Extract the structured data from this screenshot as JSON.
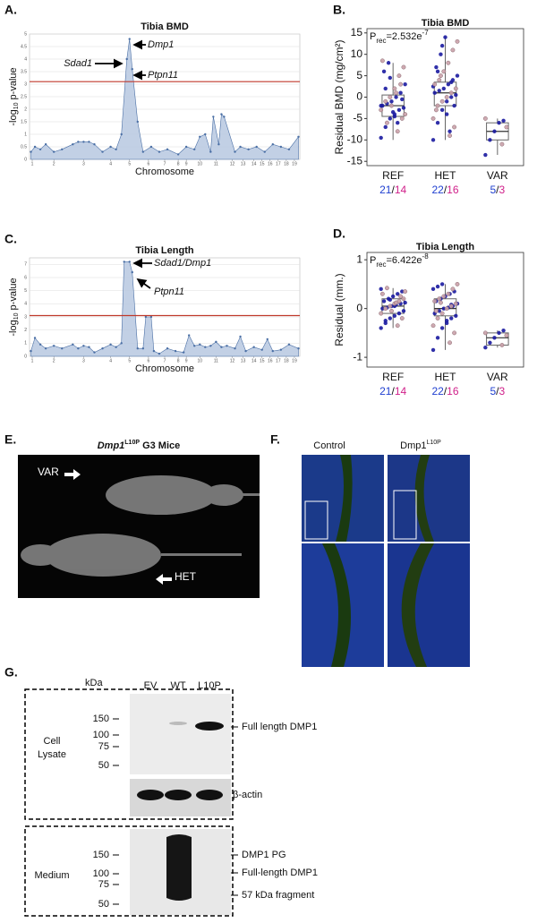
{
  "panel_labels": [
    "A.",
    "B.",
    "C.",
    "D.",
    "E.",
    "F.",
    "G."
  ],
  "chart_data": [
    {
      "type": "manhattan",
      "title": "Tibia BMD",
      "ylabel": [
        "-log",
        "10",
        " p-value"
      ],
      "xlabel": "Chromosome",
      "color": "#4a6fa5",
      "fill": "#b7c8e0",
      "threshold": 3.1,
      "threshold_color": "#c0392b",
      "grid": true,
      "annotations": [
        "Dmp1",
        "Sdad1",
        "Ptpn11"
      ],
      "x": [
        0.5,
        2,
        4,
        6,
        9,
        12,
        16,
        18,
        20,
        22,
        24,
        27,
        30,
        32,
        34,
        36,
        37,
        38,
        40,
        42,
        45,
        48,
        51,
        55,
        58,
        61,
        63,
        65,
        67,
        68,
        70,
        71,
        72,
        76,
        78,
        81,
        84,
        87,
        90,
        93,
        96,
        99.5
      ],
      "values": [
        0.3,
        0.5,
        0.4,
        0.6,
        0.3,
        0.4,
        0.6,
        0.7,
        0.7,
        0.7,
        0.6,
        0.3,
        0.5,
        0.4,
        1.0,
        4.0,
        4.8,
        3.6,
        1.5,
        0.3,
        0.5,
        0.3,
        0.4,
        0.2,
        0.5,
        0.4,
        0.9,
        1.0,
        0.3,
        1.7,
        0.6,
        1.8,
        1.7,
        0.3,
        0.5,
        0.4,
        0.5,
        0.3,
        0.6,
        0.5,
        0.4,
        0.9
      ],
      "xlim": [
        0,
        100
      ],
      "ylim": [
        0,
        5
      ],
      "yticks": [
        0,
        0.5,
        1,
        1.5,
        2,
        2.5,
        3,
        3.5,
        4,
        4.5,
        5
      ],
      "xticks": [
        {
          "value": 1,
          "label": "1"
        },
        {
          "value": 9,
          "label": "2"
        },
        {
          "value": 20,
          "label": "3"
        },
        {
          "value": 30,
          "label": "4"
        },
        {
          "value": 37,
          "label": "5"
        },
        {
          "value": 44,
          "label": "6"
        },
        {
          "value": 50,
          "label": "7"
        },
        {
          "value": 55,
          "label": "8"
        },
        {
          "value": 58,
          "label": "9"
        },
        {
          "value": 63,
          "label": "10"
        },
        {
          "value": 69,
          "label": "11"
        },
        {
          "value": 75,
          "label": "12"
        },
        {
          "value": 79,
          "label": "13"
        },
        {
          "value": 83,
          "label": "14"
        },
        {
          "value": 86,
          "label": "15"
        },
        {
          "value": 89,
          "label": "16"
        },
        {
          "value": 92,
          "label": "17"
        },
        {
          "value": 95,
          "label": "18"
        },
        {
          "value": 98,
          "label": "19"
        }
      ]
    },
    {
      "type": "box",
      "title": "Tibia BMD",
      "annotation": [
        "P",
        "rec",
        "=2.532e",
        "-7"
      ],
      "ylabel": "Residual BMD (mg/cm²)",
      "categories": [
        "REF",
        "HET",
        "VAR"
      ],
      "ylim": [
        -16,
        16
      ],
      "yticks": [
        -15,
        -10,
        -5,
        0,
        5,
        10,
        15
      ],
      "count_colors": [
        "#1f3fd0",
        "#d0208a"
      ],
      "count_separator": "/",
      "counts": [
        [
          21,
          14
        ],
        [
          22,
          16
        ],
        [
          5,
          3
        ]
      ],
      "boxes": [
        {
          "whislo": -10,
          "q1": -4.5,
          "med": -2,
          "q3": 0.5,
          "whishi": 8
        },
        {
          "whislo": -10,
          "q1": -2,
          "med": 1,
          "q3": 3.5,
          "whishi": 14
        },
        {
          "whislo": -13.5,
          "q1": -10,
          "med": -8,
          "q3": -6,
          "whishi": -5
        }
      ],
      "points": [
        [
          {
            "color": "#1a1aa0",
            "values": [
              -9.5,
              -7,
              -5,
              -4,
              -3,
              -2.5,
              -2,
              -1.5,
              -1,
              0,
              1,
              3,
              6,
              8,
              -3.5,
              -6,
              -0.5,
              -2,
              2,
              4.5,
              -4.5
            ]
          },
          {
            "color": "#c9a0a8",
            "values": [
              -8,
              -5,
              -3,
              -1,
              0,
              2,
              5,
              7,
              8.5,
              -6,
              -2,
              1,
              3,
              -4
            ]
          }
        ],
        [
          {
            "color": "#1a1aa0",
            "values": [
              -10,
              -6,
              -3,
              -1,
              0,
              0.5,
              1,
              1.5,
              2,
              3,
              4,
              5,
              7,
              10,
              14,
              -8,
              -2,
              2.5,
              6,
              12,
              -4,
              3.5
            ]
          },
          {
            "color": "#c9a0a8",
            "values": [
              -9,
              -7,
              -5,
              -2,
              -1,
              0,
              1,
              2,
              3,
              4,
              6,
              8,
              11,
              13,
              -3,
              5
            ]
          }
        ],
        [
          {
            "color": "#1a1aa0",
            "values": [
              -13.5,
              -10,
              -8,
              -6,
              -5.5
            ]
          },
          {
            "color": "#c9a0a8",
            "values": [
              -11,
              -7,
              -5
            ]
          }
        ]
      ]
    },
    {
      "type": "manhattan",
      "title": "Tibia Length",
      "ylabel": [
        "-log",
        "10",
        " p-value"
      ],
      "xlabel": "Chromosome",
      "color": "#4a6fa5",
      "fill": "#b7c8e0",
      "threshold": 3.1,
      "threshold_color": "#c0392b",
      "grid": true,
      "annotations": [
        "Sdad1/Dmp1",
        "Ptpn11"
      ],
      "x": [
        0.5,
        2,
        4,
        6,
        9,
        12,
        16,
        18,
        20,
        22,
        24,
        27,
        30,
        32,
        34,
        35,
        37,
        38,
        40,
        42,
        43,
        45,
        46,
        48,
        51,
        54,
        57,
        59,
        61,
        63,
        65,
        67,
        69,
        71,
        73,
        76,
        78,
        80,
        83,
        86,
        88,
        90,
        93,
        96,
        99.5
      ],
      "values": [
        0.4,
        1.4,
        0.9,
        0.6,
        0.8,
        0.6,
        0.9,
        0.6,
        0.8,
        0.7,
        0.3,
        0.6,
        0.9,
        0.7,
        1.0,
        7.2,
        7.2,
        6.4,
        0.6,
        0.6,
        3.0,
        3.0,
        0.4,
        0.2,
        0.6,
        0.4,
        0.3,
        1.6,
        0.8,
        0.9,
        0.7,
        0.8,
        1.1,
        0.7,
        0.8,
        0.6,
        1.5,
        0.4,
        0.7,
        0.5,
        1.3,
        0.4,
        0.5,
        0.9,
        0.6
      ],
      "xlim": [
        0,
        100
      ],
      "ylim": [
        0,
        7.5
      ],
      "yticks": [
        0,
        1,
        2,
        3,
        4,
        5,
        6,
        7
      ],
      "xticks": [
        {
          "value": 1,
          "label": "1"
        },
        {
          "value": 9,
          "label": "2"
        },
        {
          "value": 20,
          "label": "3"
        },
        {
          "value": 30,
          "label": "4"
        },
        {
          "value": 37,
          "label": "5"
        },
        {
          "value": 44,
          "label": "6"
        },
        {
          "value": 50,
          "label": "7"
        },
        {
          "value": 55,
          "label": "8"
        },
        {
          "value": 58,
          "label": "9"
        },
        {
          "value": 63,
          "label": "10"
        },
        {
          "value": 69,
          "label": "11"
        },
        {
          "value": 75,
          "label": "12"
        },
        {
          "value": 79,
          "label": "13"
        },
        {
          "value": 83,
          "label": "14"
        },
        {
          "value": 86,
          "label": "15"
        },
        {
          "value": 89,
          "label": "16"
        },
        {
          "value": 92,
          "label": "17"
        },
        {
          "value": 95,
          "label": "18"
        },
        {
          "value": 98,
          "label": "19"
        }
      ]
    },
    {
      "type": "box",
      "title": "Tibia Length",
      "annotation": [
        "P",
        "rec",
        "=6.422e",
        "-8"
      ],
      "ylabel": "Residual (mm.)",
      "categories": [
        "REF",
        "HET",
        "VAR"
      ],
      "ylim": [
        -1.2,
        1.15
      ],
      "yticks": [
        -1,
        0,
        1
      ],
      "count_colors": [
        "#1f3fd0",
        "#d0208a"
      ],
      "count_separator": "/",
      "counts": [
        [
          21,
          14
        ],
        [
          22,
          16
        ],
        [
          5,
          3
        ]
      ],
      "boxes": [
        {
          "whislo": -0.4,
          "q1": -0.1,
          "med": 0.05,
          "q3": 0.2,
          "whishi": 0.42
        },
        {
          "whislo": -0.85,
          "q1": -0.15,
          "med": 0.0,
          "q3": 0.2,
          "whishi": 0.5
        },
        {
          "whislo": -0.8,
          "q1": -0.75,
          "med": -0.6,
          "q3": -0.5,
          "whishi": -0.45
        }
      ],
      "points": [
        [
          {
            "color": "#1a1aa0",
            "values": [
              -0.4,
              -0.3,
              -0.2,
              -0.15,
              -0.1,
              -0.05,
              0,
              0.02,
              0.05,
              0.08,
              0.1,
              0.12,
              0.15,
              0.2,
              0.25,
              0.3,
              0.35,
              0.4,
              -0.25,
              0.18,
              0.05
            ]
          },
          {
            "color": "#c9a0a8",
            "values": [
              -0.35,
              -0.2,
              -0.1,
              0,
              0.05,
              0.1,
              0.15,
              0.2,
              0.3,
              0.42,
              -0.05,
              0.12,
              0.25,
              0.35
            ]
          }
        ],
        [
          {
            "color": "#1a1aa0",
            "values": [
              -0.85,
              -0.6,
              -0.4,
              -0.3,
              -0.2,
              -0.15,
              -0.1,
              -0.05,
              0,
              0.02,
              0.05,
              0.1,
              0.15,
              0.2,
              0.25,
              0.3,
              0.35,
              0.4,
              0.45,
              0.5,
              -0.25,
              0.08
            ]
          },
          {
            "color": "#c9a0a8",
            "values": [
              -0.7,
              -0.5,
              -0.35,
              -0.2,
              -0.1,
              0,
              0.05,
              0.1,
              0.15,
              0.2,
              0.25,
              0.3,
              0.4,
              0.5,
              -0.05,
              0.12
            ]
          }
        ],
        [
          {
            "color": "#1a1aa0",
            "values": [
              -0.8,
              -0.7,
              -0.6,
              -0.5,
              -0.45
            ]
          },
          {
            "color": "#c9a0a8",
            "values": [
              -0.75,
              -0.55,
              -0.5
            ]
          }
        ]
      ]
    }
  ],
  "xray": {
    "title_gene": "Dmp1",
    "title_allele": "L10P",
    "title_rest": " G3 Mice",
    "arrow_labels": [
      "VAR",
      "HET"
    ]
  },
  "histology": {
    "column_labels": [
      "Control",
      "Dmp1"
    ],
    "allele": "L10P"
  },
  "blot": {
    "kda_label": "kDa",
    "lanes": [
      "EV",
      "WT",
      "L10P"
    ],
    "markers": [
      150,
      100,
      75,
      50
    ],
    "lysate_label": [
      "Cell",
      "Lysate"
    ],
    "lysate_bands": [
      "Full length DMP1",
      "β-actin"
    ],
    "medium_label": "Medium",
    "medium_bands": [
      "DMP1 PG",
      "Full-length DMP1",
      "57 kDa fragment"
    ]
  }
}
